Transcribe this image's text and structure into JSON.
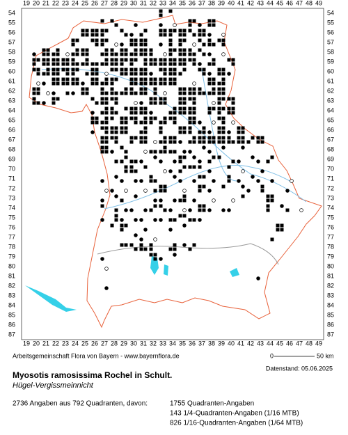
{
  "map": {
    "x_labels": [
      19,
      20,
      21,
      22,
      23,
      24,
      25,
      26,
      27,
      28,
      29,
      30,
      31,
      32,
      33,
      34,
      35,
      36,
      37,
      38,
      39,
      40,
      41,
      42,
      43,
      44,
      45,
      46,
      47,
      48,
      49
    ],
    "y_labels": [
      54,
      55,
      56,
      57,
      58,
      59,
      60,
      61,
      62,
      63,
      64,
      65,
      66,
      67,
      68,
      69,
      70,
      71,
      72,
      73,
      74,
      75,
      76,
      77,
      78,
      79,
      80,
      81,
      82,
      83,
      84,
      85,
      86,
      87
    ],
    "credit": "Arbeitsgemeinschaft Flora von Bayern - www.bayernflora.de",
    "scale_start": "0",
    "scale_end": "50 km",
    "date": "Datenstand: 05.06.2025"
  },
  "species": {
    "name": "Myosotis ramosissima Rochel in Schult.",
    "common_name": "Hügel-Vergissmeinnicht"
  },
  "stats": {
    "summary": "2736 Angaben aus 792 Quadranten, davon:",
    "lines": [
      "1755 Quadranten-Angaben",
      "143 1/4-Quadranten-Angaben (1/16 MTB)",
      "826 1/16-Quadranten-Angaben (1/64 MTB)"
    ]
  }
}
